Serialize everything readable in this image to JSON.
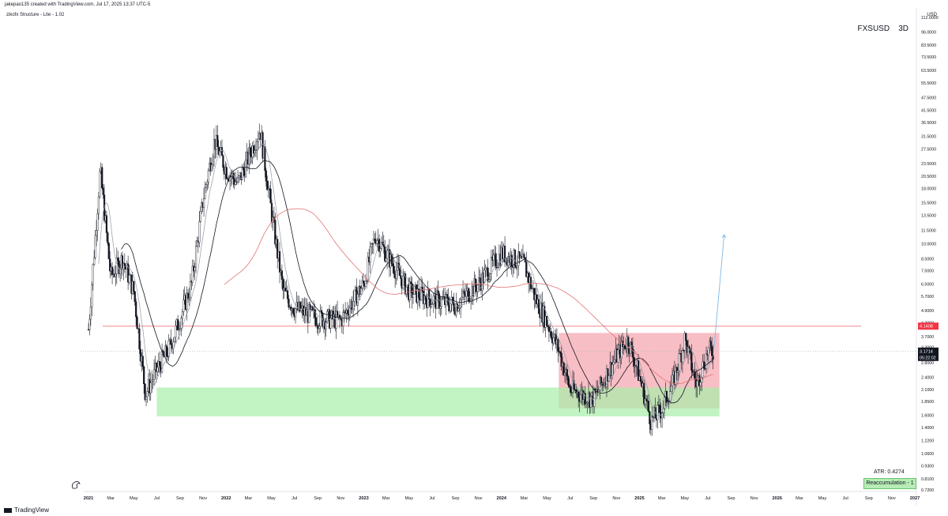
{
  "header": {
    "attribution": "jakepao135 created with TradingView.com, Jul 17, 2025 13:37 UTC-5"
  },
  "indicator": {
    "label": "zikofx Structure - Lite - 1.02"
  },
  "symbol": {
    "name": "FXSUSD",
    "interval": "3D"
  },
  "currency": "USD",
  "atr": "ATR: 0.4274",
  "reaccumulation_label": "Reaccumulation - 1",
  "footer": {
    "brand": "TradingView"
  },
  "colors": {
    "candle": "#131722",
    "zone_red": "#f5a3ac",
    "zone_green": "#a8eeaa",
    "level_line": "#f08a8a",
    "projection": "#7fb8e6",
    "price_label": "#131722",
    "level_label": "#f23645"
  },
  "chart_data": {
    "type": "candlestick",
    "scale": "log",
    "y_ticks": [
      "112.0000",
      "96.0000",
      "83.5000",
      "73.5000",
      "63.5000",
      "55.5000",
      "47.5000",
      "41.5000",
      "36.5000",
      "31.5000",
      "27.5000",
      "23.5000",
      "20.5000",
      "18.0000",
      "15.5000",
      "13.5000",
      "11.5000",
      "10.0000",
      "8.5000",
      "7.5000",
      "6.5000",
      "5.7000",
      "4.9000",
      "4.3000",
      "3.7000",
      "3.3000",
      "2.8000",
      "2.4000",
      "2.1000",
      "1.8500",
      "1.6000",
      "1.4000",
      "1.2200",
      "1.0600",
      "0.9300",
      "0.8100",
      "0.7200"
    ],
    "x_ticks": [
      "2021",
      "Mar",
      "May",
      "Jul",
      "Sep",
      "Nov",
      "2022",
      "Mar",
      "May",
      "Jul",
      "Sep",
      "Nov",
      "2023",
      "Mar",
      "May",
      "Jul",
      "Sep",
      "Nov",
      "2024",
      "Mar",
      "May",
      "Jul",
      "Sep",
      "Nov",
      "2025",
      "Mar",
      "May",
      "Jul",
      "Sep",
      "Nov",
      "2026",
      "Mar",
      "May",
      "Jul",
      "Sep",
      "Nov",
      "2027"
    ],
    "bold_x_ticks": [
      "2021",
      "2022",
      "2023",
      "2024",
      "2025",
      "2026",
      "2027"
    ],
    "last_price": {
      "value": "3.1714",
      "countdown": "05:22:02"
    },
    "level_line": {
      "value": "4.1408"
    },
    "approx_path": [
      {
        "date": "2021-01",
        "price": 4.0
      },
      {
        "date": "2021-02",
        "price": 22.0
      },
      {
        "date": "2021-03",
        "price": 7.0
      },
      {
        "date": "2021-04",
        "price": 8.5
      },
      {
        "date": "2021-05",
        "price": 6.0
      },
      {
        "date": "2021-06",
        "price": 2.0
      },
      {
        "date": "2021-07",
        "price": 2.6
      },
      {
        "date": "2021-08",
        "price": 3.2
      },
      {
        "date": "2021-09",
        "price": 4.5
      },
      {
        "date": "2021-10",
        "price": 6.5
      },
      {
        "date": "2021-11",
        "price": 16.0
      },
      {
        "date": "2021-12",
        "price": 30.0
      },
      {
        "date": "2022-01",
        "price": 22.0
      },
      {
        "date": "2022-02",
        "price": 19.0
      },
      {
        "date": "2022-03",
        "price": 25.0
      },
      {
        "date": "2022-04",
        "price": 34.0
      },
      {
        "date": "2022-05",
        "price": 14.0
      },
      {
        "date": "2022-06",
        "price": 6.0
      },
      {
        "date": "2022-07",
        "price": 5.0
      },
      {
        "date": "2022-09",
        "price": 4.5
      },
      {
        "date": "2022-11",
        "price": 4.4
      },
      {
        "date": "2023-01",
        "price": 6.5
      },
      {
        "date": "2023-02",
        "price": 11.0
      },
      {
        "date": "2023-03",
        "price": 9.0
      },
      {
        "date": "2023-05",
        "price": 6.0
      },
      {
        "date": "2023-07",
        "price": 5.5
      },
      {
        "date": "2023-09",
        "price": 5.2
      },
      {
        "date": "2023-11",
        "price": 6.5
      },
      {
        "date": "2024-01",
        "price": 9.0
      },
      {
        "date": "2024-03",
        "price": 8.0
      },
      {
        "date": "2024-04",
        "price": 5.5
      },
      {
        "date": "2024-05",
        "price": 4.3
      },
      {
        "date": "2024-06",
        "price": 3.2
      },
      {
        "date": "2024-07",
        "price": 2.1
      },
      {
        "date": "2024-09",
        "price": 1.9
      },
      {
        "date": "2024-11",
        "price": 3.0
      },
      {
        "date": "2024-12",
        "price": 3.6
      },
      {
        "date": "2025-01",
        "price": 2.4
      },
      {
        "date": "2025-02",
        "price": 1.5
      },
      {
        "date": "2025-03",
        "price": 1.7
      },
      {
        "date": "2025-04",
        "price": 2.3
      },
      {
        "date": "2025-05",
        "price": 3.6
      },
      {
        "date": "2025-06",
        "price": 2.2
      },
      {
        "date": "2025-07",
        "price": 3.17
      }
    ],
    "zones": [
      {
        "name": "red",
        "from_date": "2024-06",
        "to_date": "2025-08",
        "low": 1.72,
        "high": 3.85
      },
      {
        "name": "green",
        "from_date": "2021-07",
        "to_date": "2025-08",
        "low": 1.58,
        "high": 2.15
      }
    ],
    "projection": {
      "from_date": "2025-07",
      "from_price": 3.2,
      "to_date": "2025-08",
      "to_price": 11.0
    },
    "grid": false,
    "legend": "none"
  }
}
